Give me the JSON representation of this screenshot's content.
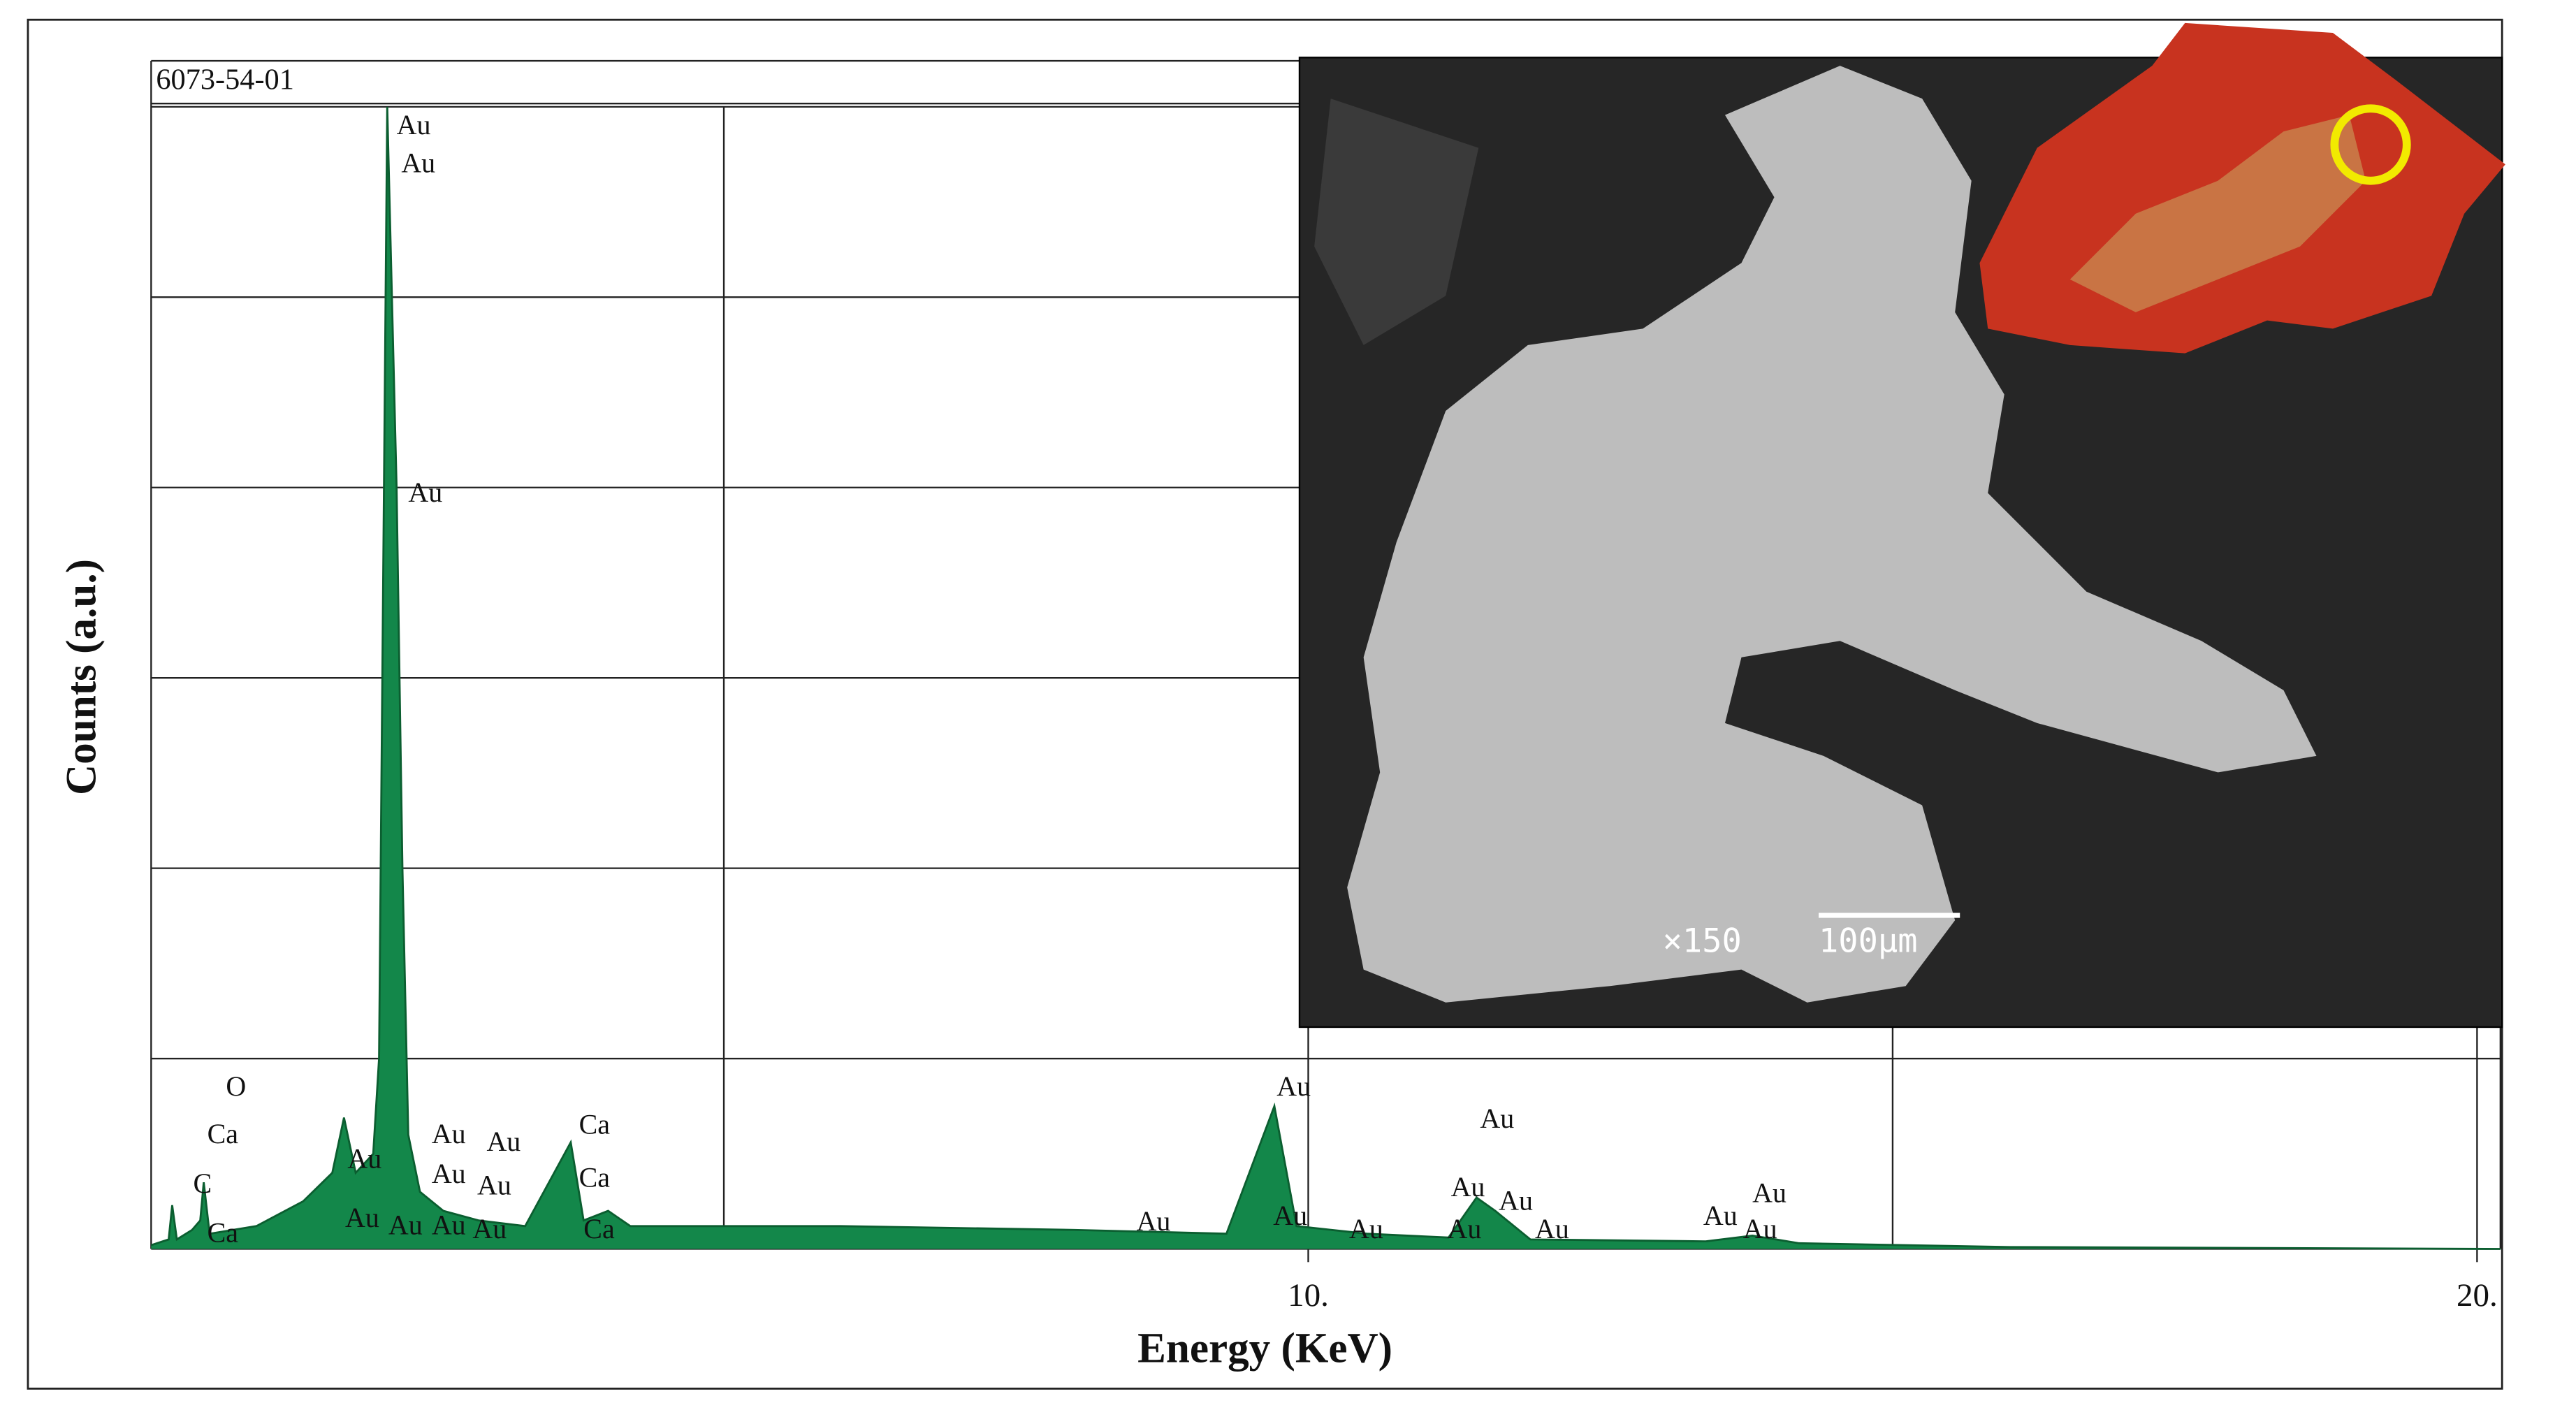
{
  "chart_data": {
    "type": "area",
    "header": "6073-54-01",
    "xlabel": "Energy (KeV)",
    "ylabel": "Counts (a.u.)",
    "xlim": [
      0.1,
      20.2
    ],
    "ylim": [
      0,
      6
    ],
    "xticks": [
      {
        "value": 10,
        "label": "10."
      },
      {
        "value": 20,
        "label": "20."
      }
    ],
    "xgrid": [
      5,
      10,
      15,
      20
    ],
    "ygrid": [
      1,
      2,
      3,
      4,
      5,
      6
    ],
    "series": [
      {
        "name": "6073-54-01",
        "color": "#13874a",
        "x": [
          0.1,
          0.25,
          0.28,
          0.32,
          0.45,
          0.52,
          0.55,
          0.6,
          1.0,
          1.4,
          1.65,
          1.75,
          1.85,
          2.0,
          2.05,
          2.12,
          2.2,
          2.25,
          2.3,
          2.4,
          2.6,
          2.9,
          3.3,
          3.69,
          3.8,
          4.01,
          4.2,
          6,
          8,
          9.3,
          9.71,
          9.9,
          10.5,
          11.2,
          11.44,
          11.6,
          11.9,
          13.4,
          13.8,
          14.2,
          16,
          20.2
        ],
        "values": [
          0.02,
          0.05,
          0.23,
          0.05,
          0.1,
          0.15,
          0.35,
          0.08,
          0.12,
          0.25,
          0.4,
          0.69,
          0.4,
          0.5,
          1.0,
          6.0,
          4.0,
          2.0,
          0.6,
          0.3,
          0.2,
          0.15,
          0.12,
          0.56,
          0.15,
          0.2,
          0.12,
          0.12,
          0.1,
          0.08,
          0.75,
          0.12,
          0.08,
          0.06,
          0.27,
          0.2,
          0.05,
          0.04,
          0.07,
          0.03,
          0.01,
          0
        ]
      }
    ],
    "annotations": [
      {
        "text": "O",
        "x": 0.74,
        "y": 0.84
      },
      {
        "text": "Ca",
        "x": 0.58,
        "y": 0.59
      },
      {
        "text": "C",
        "x": 0.46,
        "y": 0.33
      },
      {
        "text": "Ca",
        "x": 0.58,
        "y": 0.07
      },
      {
        "text": "Au",
        "x": 2.2,
        "y": 5.89
      },
      {
        "text": "Au",
        "x": 2.24,
        "y": 5.69
      },
      {
        "text": "Au",
        "x": 2.3,
        "y": 3.96
      },
      {
        "text": "Au",
        "x": 1.78,
        "y": 0.46
      },
      {
        "text": "Au",
        "x": 1.76,
        "y": 0.15
      },
      {
        "text": "Au",
        "x": 2.13,
        "y": 0.11
      },
      {
        "text": "Au",
        "x": 2.5,
        "y": 0.59
      },
      {
        "text": "Au",
        "x": 2.97,
        "y": 0.55
      },
      {
        "text": "Au",
        "x": 2.5,
        "y": 0.38
      },
      {
        "text": "Au",
        "x": 2.89,
        "y": 0.32
      },
      {
        "text": "Au",
        "x": 2.5,
        "y": 0.11
      },
      {
        "text": "Au",
        "x": 2.85,
        "y": 0.09
      },
      {
        "text": "Ca",
        "x": 3.76,
        "y": 0.64
      },
      {
        "text": "Ca",
        "x": 3.76,
        "y": 0.36
      },
      {
        "text": "Ca",
        "x": 3.8,
        "y": 0.09
      },
      {
        "text": "Au",
        "x": 8.53,
        "y": 0.13
      },
      {
        "text": "Au",
        "x": 9.73,
        "y": 0.84
      },
      {
        "text": "Au",
        "x": 9.7,
        "y": 0.16
      },
      {
        "text": "Au",
        "x": 10.35,
        "y": 0.09
      },
      {
        "text": "Au",
        "x": 11.47,
        "y": 0.67
      },
      {
        "text": "Au",
        "x": 11.22,
        "y": 0.31
      },
      {
        "text": "Au",
        "x": 11.63,
        "y": 0.24
      },
      {
        "text": "Au",
        "x": 11.19,
        "y": 0.09
      },
      {
        "text": "Au",
        "x": 11.94,
        "y": 0.09
      },
      {
        "text": "Au",
        "x": 13.8,
        "y": 0.28
      },
      {
        "text": "Au",
        "x": 13.38,
        "y": 0.16
      },
      {
        "text": "Au",
        "x": 13.72,
        "y": 0.09
      }
    ],
    "inset": {
      "magnification": "×150",
      "scale_bar": "100μm"
    }
  }
}
